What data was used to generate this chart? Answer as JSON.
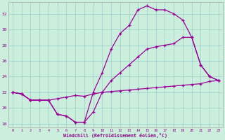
{
  "background_color": "#cceedd",
  "line_color": "#990099",
  "grid_color": "#99cccc",
  "text_color": "#880088",
  "xlabel": "Windchill (Refroidissement éolien,°C)",
  "xlim": [
    -0.5,
    23.5
  ],
  "ylim": [
    17.5,
    33.5
  ],
  "xticks": [
    0,
    1,
    2,
    3,
    4,
    5,
    6,
    7,
    8,
    9,
    10,
    11,
    12,
    13,
    14,
    15,
    16,
    17,
    18,
    19,
    20,
    21,
    22,
    23
  ],
  "yticks": [
    18,
    20,
    22,
    24,
    26,
    28,
    30,
    32
  ],
  "line1_y": [
    22.0,
    21.8,
    21.0,
    21.0,
    21.0,
    21.2,
    21.4,
    21.6,
    21.5,
    21.8,
    22.0,
    22.1,
    22.2,
    22.3,
    22.4,
    22.5,
    22.6,
    22.7,
    22.8,
    22.9,
    23.0,
    23.1,
    23.4,
    23.5
  ],
  "line2_y": [
    22.0,
    21.8,
    21.0,
    21.0,
    21.0,
    19.2,
    19.0,
    18.2,
    18.2,
    19.5,
    22.0,
    23.5,
    24.5,
    25.5,
    26.5,
    27.5,
    27.8,
    28.0,
    28.2,
    29.0,
    29.0,
    25.5,
    24.0,
    23.5
  ],
  "line3_y": [
    22.0,
    21.8,
    21.0,
    21.0,
    21.0,
    19.2,
    19.0,
    18.2,
    18.2,
    22.0,
    24.5,
    27.5,
    29.5,
    30.5,
    32.5,
    33.0,
    32.5,
    32.5,
    32.0,
    31.2,
    29.0,
    25.5,
    24.0,
    23.5
  ]
}
